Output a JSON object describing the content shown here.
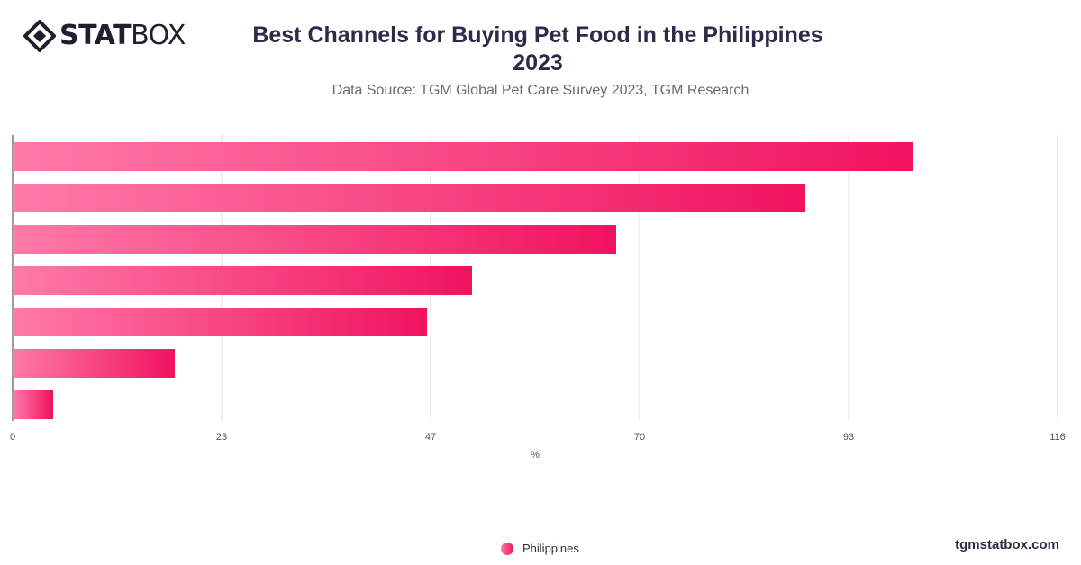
{
  "logo": {
    "bold": "STAT",
    "light": "BOX"
  },
  "header": {
    "title_line1": "Best Channels for Buying Pet Food in the Philippines",
    "title_line2": "2023",
    "subtitle": "Data Source: TGM Global Pet Care Survey 2023, TGM Research"
  },
  "legend": {
    "label": "Philippines"
  },
  "brand": "tgmstatbox.com",
  "colors": {
    "bar_start": "#ff7aa8",
    "bar_end": "#f0135f",
    "grid": "#dcdcdc"
  },
  "chart_data": {
    "type": "bar",
    "orientation": "horizontal",
    "categories": [
      "",
      "",
      "",
      "",
      "",
      "",
      ""
    ],
    "series": [
      {
        "name": "Philippines",
        "values": [
          100,
          88,
          67,
          51,
          46,
          18,
          4.5
        ]
      }
    ],
    "xlim": [
      0,
      116
    ],
    "ticks": [
      "0",
      "23",
      "47",
      "70",
      "93",
      "116"
    ],
    "tick_values": [
      0,
      23.2,
      46.4,
      69.6,
      92.8,
      116
    ],
    "xlabel": "%",
    "grid": true,
    "legend_position": "bottom"
  }
}
